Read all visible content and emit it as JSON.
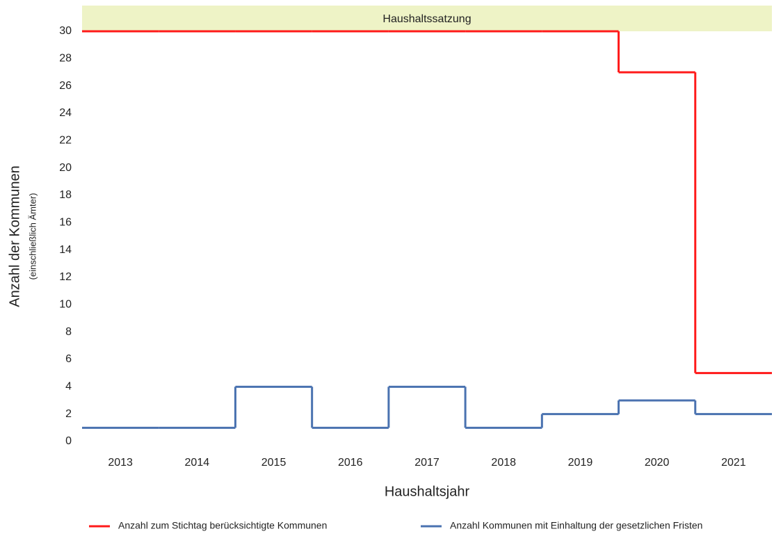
{
  "chart_data": {
    "type": "line",
    "drawstyle": "steps-mid",
    "annotation": "Haushaltssatzung",
    "annotation_color": "#eef3c6",
    "xlabel": "Haushaltsjahr",
    "ylabel": "Anzahl der Kommunen",
    "ylabel_sub": "(einschließlich Ämter)",
    "categories": [
      "2013",
      "2014",
      "2015",
      "2016",
      "2017",
      "2018",
      "2019",
      "2020",
      "2021"
    ],
    "series": [
      {
        "name": "Anzahl zum Stichtag berücksichtigte Kommunen",
        "color": "#ff1a1a",
        "values": [
          30,
          30,
          30,
          30,
          30,
          30,
          30,
          27,
          5
        ]
      },
      {
        "name": "Anzahl Kommunen mit Einhaltung der gesetzlichen Fristen",
        "color": "#4a72b0",
        "values": [
          1,
          1,
          4,
          1,
          4,
          1,
          2,
          3,
          2
        ]
      }
    ],
    "ylim": [
      0,
      30
    ],
    "yticks": [
      0,
      2,
      4,
      6,
      8,
      10,
      12,
      14,
      16,
      18,
      20,
      22,
      24,
      26,
      28,
      30
    ],
    "grid": false,
    "legend": "bottom"
  }
}
